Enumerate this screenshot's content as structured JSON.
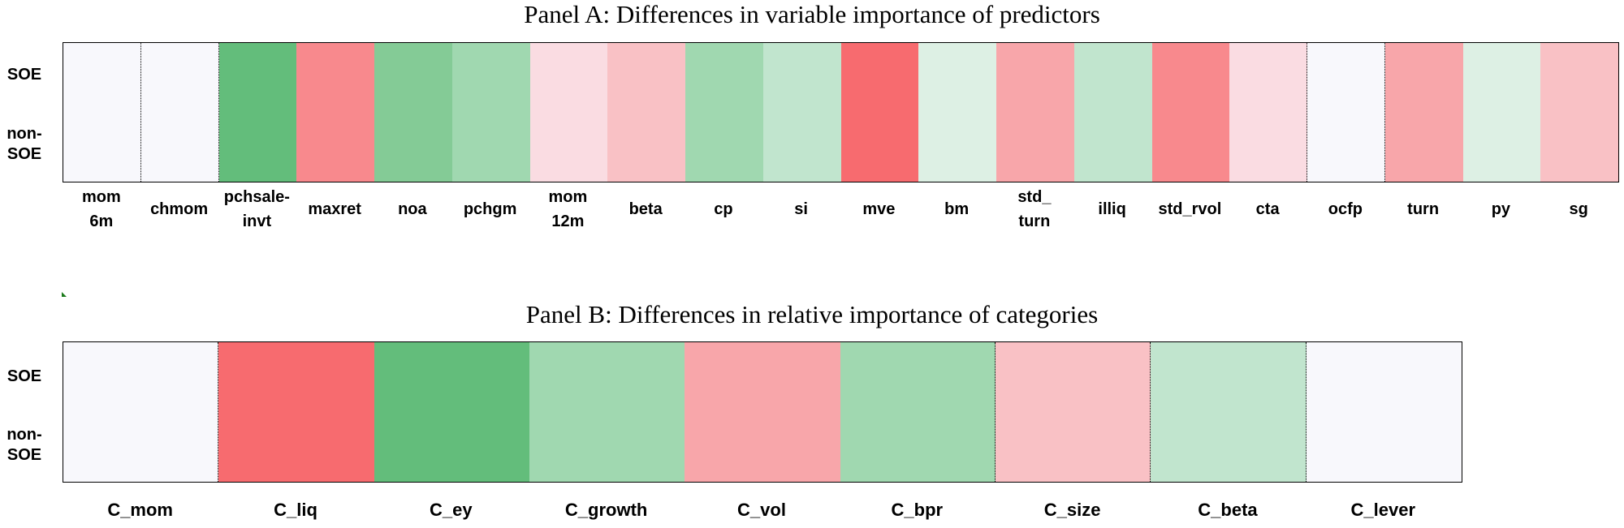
{
  "colors": {
    "wn": "#f8f8fc",
    "r1": "#fadce2",
    "r2": "#f9c1c5",
    "r3": "#f8a6aa",
    "r4": "#f8898d",
    "r5": "#f76b6f",
    "g1": "#ddf0e4",
    "g2": "#c1e5ce",
    "g3": "#a0d8b0",
    "g4": "#84cb96",
    "g5": "#63bd7b",
    "border": "#000000"
  },
  "chart_data": [
    {
      "type": "heatmap",
      "title": "Panel A:  Differences in variable importance of predictors",
      "rows": [
        "SOE",
        "non-\nSOE"
      ],
      "categories": [
        "mom\n6m",
        "chmom",
        "pchsale-\ninvt",
        "maxret",
        "noa",
        "pchgm",
        "mom\n12m",
        "beta",
        "cp",
        "si",
        "mve",
        "bm",
        "std_\nturn",
        "illiq",
        "std_rvol",
        "cta",
        "ocfp",
        "turn",
        "py",
        "sg"
      ],
      "cells": [
        "wn",
        "wn",
        "g5",
        "r4",
        "g4",
        "g3",
        "r1",
        "r2",
        "g3",
        "g2",
        "r5",
        "g1",
        "r3",
        "g2",
        "r4",
        "r1",
        "wn",
        "r3",
        "g1",
        "r2"
      ],
      "dotted_after": [
        0,
        1,
        15,
        16
      ]
    },
    {
      "type": "heatmap",
      "title": "Panel B:  Differences in relative importance of categories",
      "rows": [
        "SOE",
        "non-\nSOE"
      ],
      "categories": [
        "C_mom",
        "C_liq",
        "C_ey",
        "C_growth",
        "C_vol",
        "C_bpr",
        "C_size",
        "C_beta",
        "C_lever"
      ],
      "cells": [
        "wn",
        "r5",
        "g5",
        "g3",
        "r3",
        "g3",
        "r2",
        "g2",
        "wn"
      ],
      "dotted_after": [
        0,
        5,
        6,
        7
      ]
    }
  ]
}
